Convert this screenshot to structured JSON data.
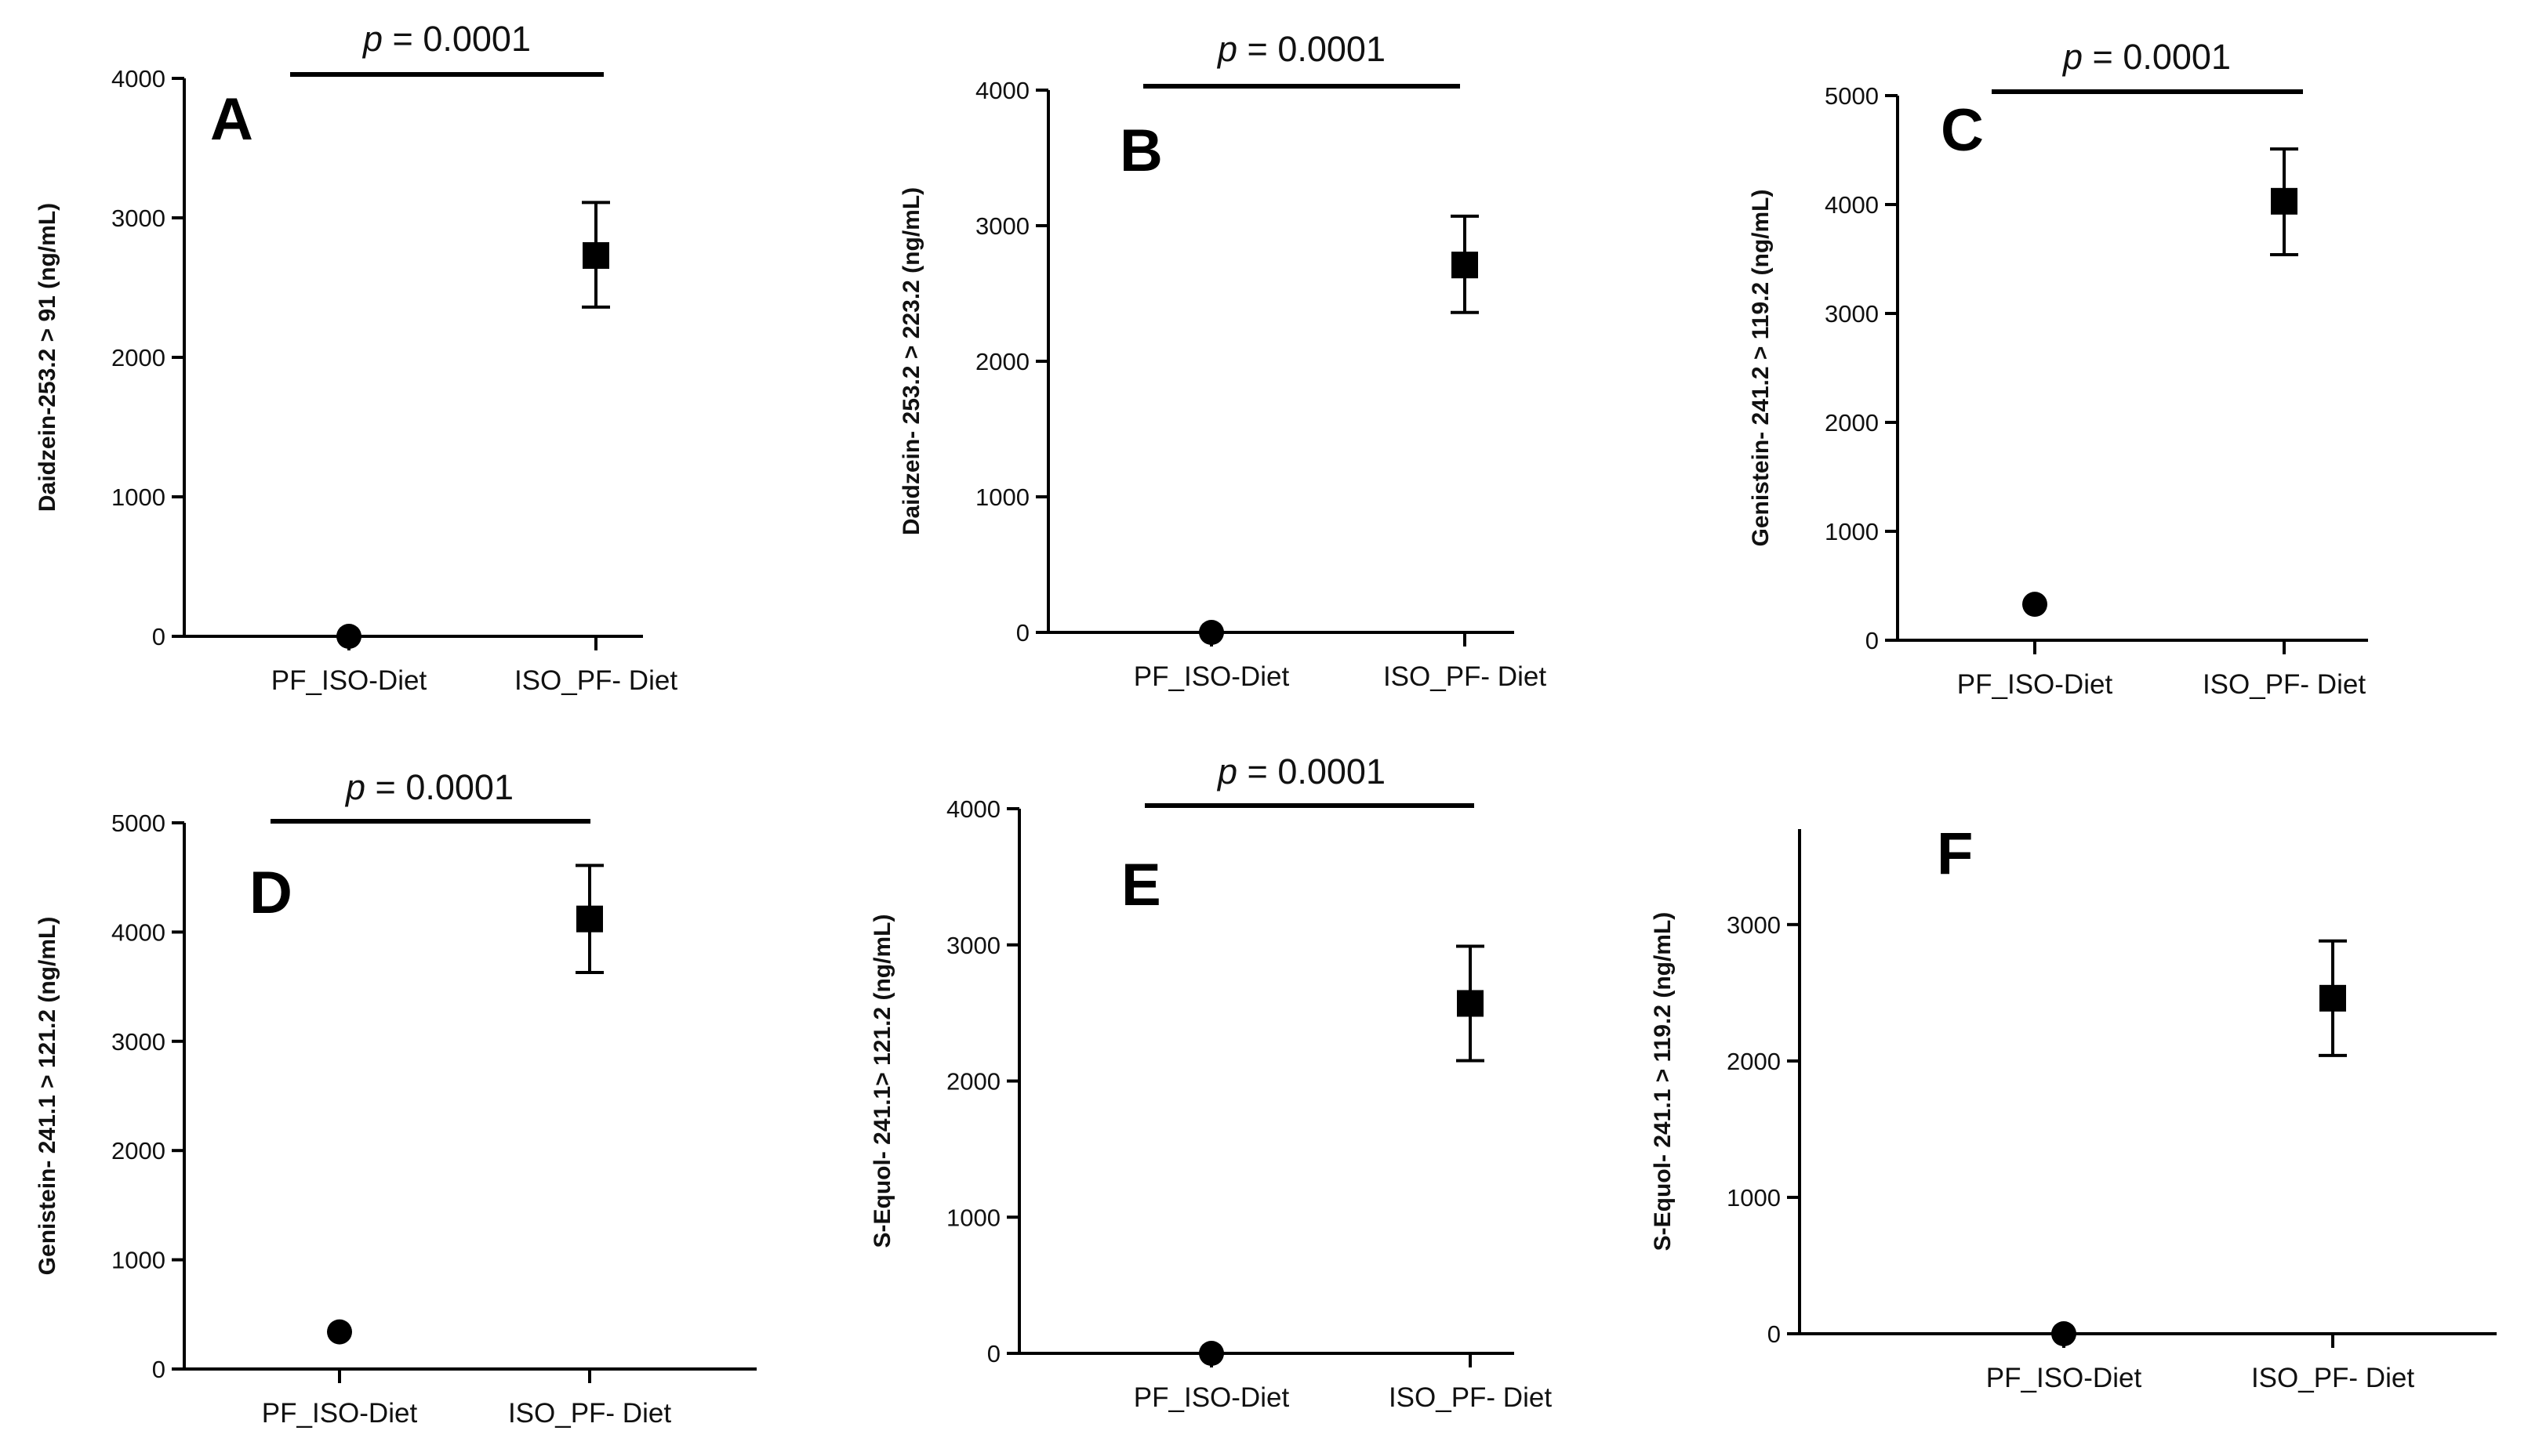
{
  "figure": {
    "marker_color": "#000000",
    "background": "#ffffff"
  },
  "chart_data": [
    {
      "type": "scatter",
      "panel": "A",
      "ylabel": "Daidzein-253.2 > 91 (ng/mL)",
      "categories": [
        "PF_ISO-Diet",
        "ISO_PF- Diet"
      ],
      "yticks": [
        "0",
        "1000",
        "2000",
        "3000",
        "4000"
      ],
      "ylim": [
        0,
        4000
      ],
      "values": [
        0,
        2730
      ],
      "err_low": [
        0,
        2360
      ],
      "err_high": [
        0,
        3110
      ],
      "markers": [
        "circle",
        "square"
      ],
      "pvalue": "p = 0.0001"
    },
    {
      "type": "scatter",
      "panel": "B",
      "ylabel": "Daidzein- 253.2 > 223.2 (ng/mL)",
      "categories": [
        "PF_ISO-Diet",
        "ISO_PF- Diet"
      ],
      "yticks": [
        "0",
        "1000",
        "2000",
        "3000",
        "4000"
      ],
      "ylim": [
        0,
        4000
      ],
      "values": [
        0,
        2710
      ],
      "err_low": [
        0,
        2360
      ],
      "err_high": [
        0,
        3070
      ],
      "markers": [
        "circle",
        "square"
      ],
      "pvalue": "p = 0.0001"
    },
    {
      "type": "scatter",
      "panel": "C",
      "ylabel": "Genistein- 241.2 > 119.2 (ng/mL)",
      "categories": [
        "PF_ISO-Diet",
        "ISO_PF- Diet"
      ],
      "yticks": [
        "0",
        "1000",
        "2000",
        "3000",
        "4000",
        "5000"
      ],
      "ylim": [
        0,
        5000
      ],
      "values": [
        330,
        4030
      ],
      "err_low": [
        330,
        3540
      ],
      "err_high": [
        330,
        4510
      ],
      "markers": [
        "circle",
        "square"
      ],
      "pvalue": "p = 0.0001"
    },
    {
      "type": "scatter",
      "panel": "D",
      "ylabel": "Genistein- 241.1 > 121.2 (ng/mL)",
      "categories": [
        "PF_ISO-Diet",
        "ISO_PF- Diet"
      ],
      "yticks": [
        "0",
        "1000",
        "2000",
        "3000",
        "4000",
        "5000"
      ],
      "ylim": [
        0,
        5000
      ],
      "values": [
        340,
        4120
      ],
      "err_low": [
        340,
        3630
      ],
      "err_high": [
        340,
        4610
      ],
      "markers": [
        "circle",
        "square"
      ],
      "pvalue": "p = 0.0001"
    },
    {
      "type": "scatter",
      "panel": "E",
      "ylabel": "S-Equol- 241.1> 121.2 (ng/mL)",
      "categories": [
        "PF_ISO-Diet",
        "ISO_PF- Diet"
      ],
      "yticks": [
        "0",
        "1000",
        "2000",
        "3000",
        "4000"
      ],
      "ylim": [
        0,
        4000
      ],
      "values": [
        0,
        2570
      ],
      "err_low": [
        0,
        2150
      ],
      "err_high": [
        0,
        2990
      ],
      "markers": [
        "circle",
        "square"
      ],
      "pvalue": "p = 0.0001"
    },
    {
      "type": "scatter",
      "panel": "F",
      "ylabel": "S-Equol- 241.1 > 119.2 (ng/mL)",
      "categories": [
        "PF_ISO-Diet",
        "ISO_PF- Diet"
      ],
      "yticks": [
        "0",
        "1000",
        "2000",
        "3000"
      ],
      "ylim": [
        0,
        3700
      ],
      "values": [
        0,
        2460
      ],
      "err_low": [
        0,
        2040
      ],
      "err_high": [
        0,
        2880
      ],
      "markers": [
        "circle",
        "square"
      ],
      "pvalue": ""
    }
  ]
}
